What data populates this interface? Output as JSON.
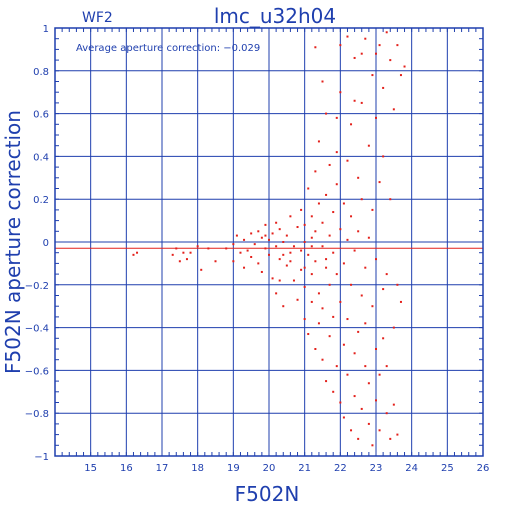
{
  "chart_data": {
    "type": "scatter",
    "panel_label": "WF2",
    "title": "lmc_u32h04",
    "annotation": "Average aperture correction: −0.029",
    "xlabel": "F502N",
    "ylabel": "F502N aperture correction",
    "xlim": [
      14,
      26
    ],
    "ylim": [
      -1,
      1
    ],
    "x_ticks": [
      15,
      16,
      17,
      18,
      19,
      20,
      21,
      22,
      23,
      24,
      25,
      26
    ],
    "x_tick_labels": [
      "15",
      "16",
      "17",
      "18",
      "19",
      "20",
      "21",
      "22",
      "23",
      "24",
      "25",
      "26"
    ],
    "y_ticks": [
      -1,
      -0.8,
      -0.6,
      -0.4,
      -0.2,
      0,
      0.2,
      0.4,
      0.6,
      0.8,
      1
    ],
    "y_tick_labels": [
      "−1",
      "−0.8",
      "−0.6",
      "−0.4",
      "−0.2",
      "0",
      "0.2",
      "0.4",
      "0.6",
      "0.8",
      "1"
    ],
    "grid": true,
    "reference_line": {
      "y": -0.029,
      "color": "#e3201b"
    },
    "colors": {
      "axes": "#1f3fae",
      "points": "#e3201b"
    },
    "points": [
      [
        16.2,
        -0.06
      ],
      [
        16.3,
        -0.05
      ],
      [
        17.3,
        -0.06
      ],
      [
        17.4,
        -0.03
      ],
      [
        17.5,
        -0.09
      ],
      [
        17.6,
        -0.05
      ],
      [
        17.7,
        -0.08
      ],
      [
        17.8,
        -0.05
      ],
      [
        18.0,
        -0.02
      ],
      [
        18.1,
        -0.13
      ],
      [
        18.3,
        -0.03
      ],
      [
        18.5,
        -0.09
      ],
      [
        18.8,
        -0.03
      ],
      [
        19.0,
        -0.01
      ],
      [
        19.0,
        -0.09
      ],
      [
        19.1,
        0.03
      ],
      [
        19.2,
        -0.05
      ],
      [
        19.3,
        -0.12
      ],
      [
        19.3,
        0.01
      ],
      [
        19.4,
        -0.04
      ],
      [
        19.5,
        0.04
      ],
      [
        19.5,
        -0.07
      ],
      [
        19.6,
        -0.01
      ],
      [
        19.7,
        0.05
      ],
      [
        19.7,
        -0.1
      ],
      [
        19.8,
        0.02
      ],
      [
        19.8,
        -0.14
      ],
      [
        19.9,
        -0.03
      ],
      [
        19.9,
        0.08
      ],
      [
        20.0,
        -0.06
      ],
      [
        20.0,
        0.01
      ],
      [
        20.1,
        -0.17
      ],
      [
        20.1,
        0.04
      ],
      [
        20.2,
        -0.02
      ],
      [
        20.2,
        -0.24
      ],
      [
        20.3,
        0.06
      ],
      [
        20.3,
        -0.08
      ],
      [
        20.4,
        0.0
      ],
      [
        20.4,
        -0.3
      ],
      [
        20.5,
        -0.11
      ],
      [
        20.5,
        0.03
      ],
      [
        20.6,
        -0.05
      ],
      [
        20.6,
        0.12
      ],
      [
        20.7,
        -0.18
      ],
      [
        20.7,
        -0.02
      ],
      [
        20.8,
        0.07
      ],
      [
        20.8,
        -0.27
      ],
      [
        20.9,
        -0.13
      ],
      [
        20.9,
        0.15
      ],
      [
        20.9,
        -0.04
      ],
      [
        21.0,
        0.0
      ],
      [
        21.0,
        -0.36
      ],
      [
        21.0,
        0.08
      ],
      [
        21.0,
        -0.21
      ],
      [
        21.1,
        0.25
      ],
      [
        21.1,
        -0.06
      ],
      [
        21.1,
        -0.43
      ],
      [
        21.2,
        0.12
      ],
      [
        21.2,
        -0.15
      ],
      [
        21.2,
        -0.28
      ],
      [
        21.2,
        0.02
      ],
      [
        21.3,
        0.33
      ],
      [
        21.3,
        -0.09
      ],
      [
        21.3,
        -0.5
      ],
      [
        21.3,
        0.05
      ],
      [
        21.4,
        -0.24
      ],
      [
        21.4,
        0.18
      ],
      [
        21.4,
        -0.38
      ],
      [
        21.4,
        0.47
      ],
      [
        21.5,
        -0.02
      ],
      [
        21.5,
        -0.55
      ],
      [
        21.5,
        0.09
      ],
      [
        21.5,
        -0.31
      ],
      [
        21.6,
        0.22
      ],
      [
        21.6,
        -0.12
      ],
      [
        21.6,
        -0.65
      ],
      [
        21.6,
        0.6
      ],
      [
        21.7,
        -0.44
      ],
      [
        21.7,
        0.03
      ],
      [
        21.7,
        0.36
      ],
      [
        21.7,
        -0.2
      ],
      [
        21.8,
        -0.7
      ],
      [
        21.8,
        0.14
      ],
      [
        21.8,
        -0.05
      ],
      [
        21.8,
        -0.35
      ],
      [
        21.9,
        0.42
      ],
      [
        21.9,
        -0.58
      ],
      [
        21.9,
        -0.15
      ],
      [
        21.9,
        0.27
      ],
      [
        22.0,
        -0.75
      ],
      [
        22.0,
        0.06
      ],
      [
        22.0,
        -0.28
      ],
      [
        22.0,
        0.7
      ],
      [
        22.1,
        -0.48
      ],
      [
        22.1,
        0.18
      ],
      [
        22.1,
        -0.82
      ],
      [
        22.1,
        -0.1
      ],
      [
        22.2,
        0.38
      ],
      [
        22.2,
        -0.62
      ],
      [
        22.2,
        0.01
      ],
      [
        22.2,
        -0.36
      ],
      [
        22.3,
        0.55
      ],
      [
        22.3,
        -0.88
      ],
      [
        22.3,
        -0.2
      ],
      [
        22.3,
        0.12
      ],
      [
        22.4,
        -0.52
      ],
      [
        22.4,
        0.86
      ],
      [
        22.4,
        -0.04
      ],
      [
        22.4,
        -0.72
      ],
      [
        22.5,
        0.3
      ],
      [
        22.5,
        -0.42
      ],
      [
        22.5,
        -0.92
      ],
      [
        22.5,
        0.05
      ],
      [
        22.6,
        -0.25
      ],
      [
        22.6,
        0.65
      ],
      [
        22.6,
        -0.78
      ],
      [
        22.6,
        0.2
      ],
      [
        22.7,
        -0.58
      ],
      [
        22.7,
        0.95
      ],
      [
        22.7,
        -0.12
      ],
      [
        22.7,
        -0.38
      ],
      [
        22.8,
        0.45
      ],
      [
        22.8,
        -0.85
      ],
      [
        22.8,
        0.02
      ],
      [
        22.8,
        -0.66
      ],
      [
        22.9,
        0.78
      ],
      [
        22.9,
        -0.3
      ],
      [
        22.9,
        -0.95
      ],
      [
        22.9,
        0.15
      ],
      [
        23.0,
        -0.5
      ],
      [
        23.0,
        0.58
      ],
      [
        23.0,
        -0.74
      ],
      [
        23.0,
        -0.08
      ],
      [
        23.1,
        0.92
      ],
      [
        23.1,
        -0.62
      ],
      [
        23.1,
        0.28
      ],
      [
        23.1,
        -0.88
      ],
      [
        23.2,
        -0.22
      ],
      [
        23.2,
        0.72
      ],
      [
        23.2,
        -0.45
      ],
      [
        23.2,
        0.4
      ],
      [
        23.3,
        -0.8
      ],
      [
        23.3,
        0.98
      ],
      [
        23.3,
        -0.15
      ],
      [
        23.3,
        -0.58
      ],
      [
        23.4,
        0.2
      ],
      [
        23.4,
        -0.92
      ],
      [
        23.4,
        0.85
      ],
      [
        23.5,
        -0.4
      ],
      [
        23.5,
        0.62
      ],
      [
        23.5,
        -0.76
      ],
      [
        23.6,
        -0.2
      ],
      [
        23.6,
        0.92
      ],
      [
        23.6,
        -0.9
      ],
      [
        23.7,
        -0.28
      ],
      [
        23.7,
        0.78
      ],
      [
        23.8,
        0.82
      ],
      [
        22.0,
        0.92
      ],
      [
        22.2,
        0.96
      ],
      [
        21.3,
        0.91
      ],
      [
        21.5,
        0.75
      ],
      [
        22.6,
        0.88
      ],
      [
        23.0,
        0.88
      ],
      [
        22.4,
        0.66
      ],
      [
        21.9,
        0.58
      ],
      [
        20.2,
        0.09
      ],
      [
        19.9,
        0.03
      ],
      [
        20.4,
        -0.06
      ],
      [
        20.6,
        -0.09
      ],
      [
        21.2,
        -0.02
      ],
      [
        21.6,
        -0.08
      ],
      [
        21.0,
        -0.12
      ],
      [
        20.3,
        -0.18
      ]
    ]
  }
}
